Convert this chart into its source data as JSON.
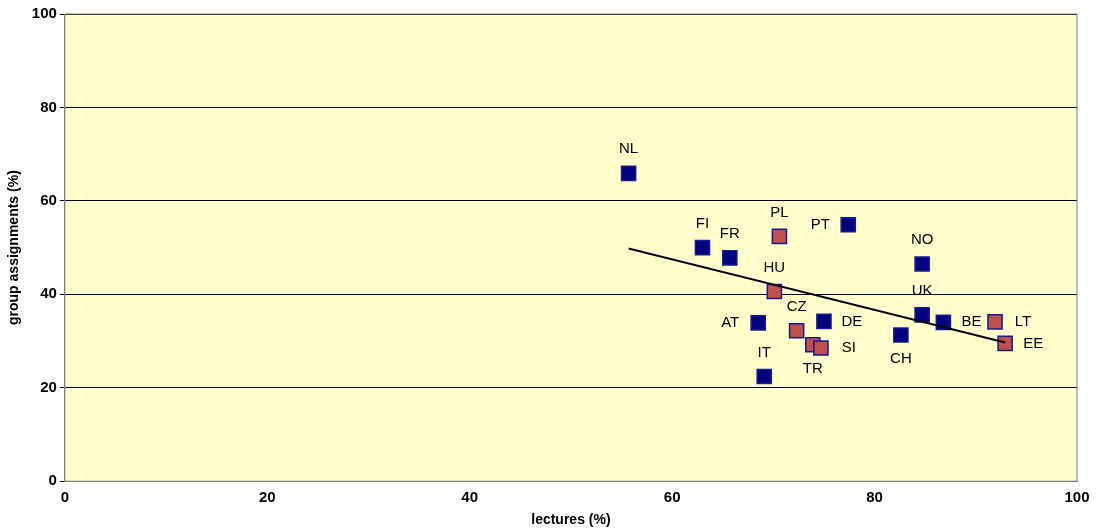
{
  "chart_data": {
    "type": "scatter",
    "xlabel": "lectures (%)",
    "ylabel": "group assignments (%)",
    "xlim": [
      0,
      100
    ],
    "xticks": [
      0,
      20,
      40,
      60,
      80,
      100
    ],
    "ylim": [
      0,
      100
    ],
    "yticks": [
      0,
      20,
      40,
      60,
      80,
      100
    ],
    "grid": "y",
    "marker": "square",
    "legend": false,
    "series": [
      {
        "color": "#000080",
        "x": [
          55.7,
          63.0,
          65.7,
          77.4,
          84.7,
          68.5,
          75.0,
          69.1,
          82.6,
          84.7,
          86.8
        ],
        "values": [
          65.9,
          50.0,
          47.8,
          54.9,
          46.5,
          33.9,
          34.2,
          22.4,
          31.3,
          35.6,
          34.0
        ]
      },
      {
        "color": "#c0504d",
        "x": [
          70.6,
          70.1,
          72.3,
          73.9,
          74.7,
          91.9,
          92.9
        ],
        "values": [
          52.4,
          40.6,
          32.2,
          29.2,
          28.5,
          34.1,
          29.5
        ]
      },
      {
        "type": "line",
        "color": "#000000",
        "marker": "none",
        "x": [
          55.7,
          92.9
        ],
        "values": [
          49.8,
          29.7
        ]
      }
    ],
    "annotations": [
      {
        "text": "NL",
        "x": 55.7,
        "y": 65.9
      },
      {
        "text": "FI",
        "x": 63.0,
        "y": 50.0
      },
      {
        "text": "FR",
        "x": 65.7,
        "y": 47.8
      },
      {
        "text": "PT",
        "x": 77.4,
        "y": 54.9
      },
      {
        "text": "NO",
        "x": 84.7,
        "y": 46.5
      },
      {
        "text": "AT",
        "x": 68.5,
        "y": 33.9
      },
      {
        "text": "DE",
        "x": 75.0,
        "y": 34.2
      },
      {
        "text": "IT",
        "x": 69.1,
        "y": 22.4
      },
      {
        "text": "CH",
        "x": 82.6,
        "y": 31.3
      },
      {
        "text": "UK",
        "x": 84.7,
        "y": 35.6
      },
      {
        "text": "BE",
        "x": 86.8,
        "y": 34.0
      },
      {
        "text": "PL",
        "x": 70.6,
        "y": 52.4
      },
      {
        "text": "HU",
        "x": 70.1,
        "y": 40.6
      },
      {
        "text": "CZ",
        "x": 72.3,
        "y": 32.2
      },
      {
        "text": "TR",
        "x": 73.9,
        "y": 29.2
      },
      {
        "text": "SI",
        "x": 74.7,
        "y": 28.5
      },
      {
        "text": "LT",
        "x": 91.9,
        "y": 34.1
      },
      {
        "text": "EE",
        "x": 92.9,
        "y": 29.5
      }
    ]
  }
}
